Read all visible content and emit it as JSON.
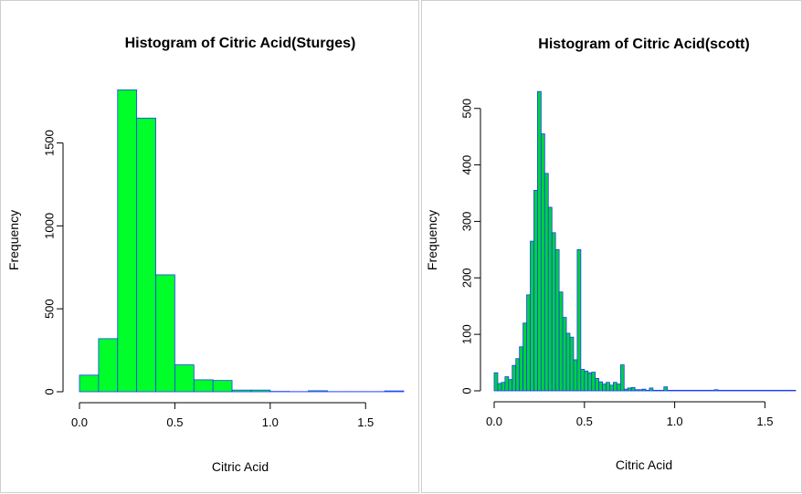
{
  "chart_data": [
    {
      "type": "bar",
      "title": "Histogram of Citric Acid(Sturges)",
      "xlabel": "Citric Acid",
      "ylabel": "Frequency",
      "bin_width": 0.1,
      "bin_start": 0.0,
      "values": [
        100,
        320,
        1820,
        1650,
        705,
        162,
        72,
        68,
        10,
        10,
        2,
        1,
        6,
        1,
        1,
        1,
        5
      ],
      "xlim": [
        0,
        1.7
      ],
      "ylim": [
        0,
        1850
      ],
      "x_ticks": [
        "0.0",
        "0.5",
        "1.0",
        "1.5"
      ],
      "y_ticks": [
        "0",
        "500",
        "1000",
        "1500"
      ],
      "colors": {
        "fill": "#00ff2a",
        "stroke": "#1a3cff"
      }
    },
    {
      "type": "bar",
      "title": "Histogram of Citric Acid(scott)",
      "xlabel": "Citric Acid",
      "ylabel": "Frequency",
      "bin_width": 0.02,
      "bin_start": 0.0,
      "values": [
        32,
        13,
        15,
        25,
        20,
        45,
        57,
        78,
        120,
        170,
        265,
        355,
        530,
        455,
        385,
        325,
        280,
        250,
        175,
        130,
        102,
        95,
        55,
        250,
        38,
        35,
        32,
        33,
        22,
        16,
        12,
        15,
        10,
        15,
        12,
        46,
        3,
        5,
        6,
        2,
        2,
        3,
        1,
        5,
        1,
        1,
        1,
        7,
        1,
        1,
        1,
        1,
        1,
        1,
        1,
        1,
        1,
        1,
        1,
        1,
        1,
        2,
        1,
        1,
        1,
        1,
        1,
        1,
        1,
        1,
        1,
        1,
        1,
        1,
        1,
        1,
        1,
        1,
        1,
        1,
        1,
        1,
        1,
        1,
        1
      ],
      "xlim": [
        0,
        1.67
      ],
      "ylim": [
        0,
        540
      ],
      "x_ticks": [
        "0.0",
        "0.5",
        "1.0",
        "1.5"
      ],
      "y_ticks": [
        "0",
        "100",
        "200",
        "300",
        "400",
        "500"
      ],
      "colors": {
        "fill": "#00d23c",
        "stroke": "#1a3cff"
      }
    }
  ]
}
